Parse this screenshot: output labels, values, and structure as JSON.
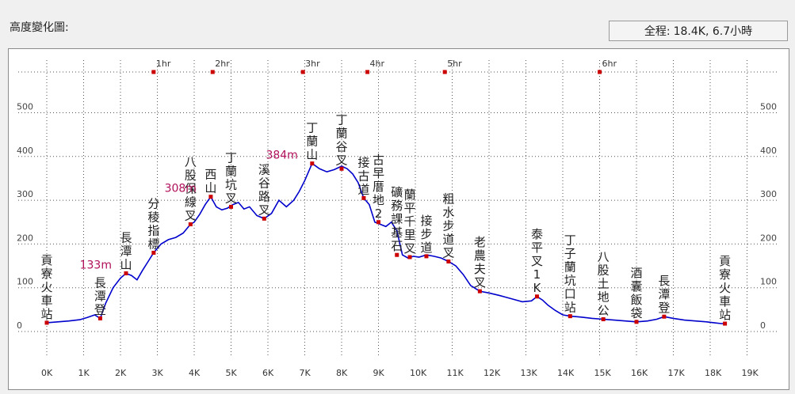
{
  "header": {
    "title": "高度變化圖:",
    "summary_label": "全程:",
    "summary_value": "18.4K, 6.7小時"
  },
  "chart_data": {
    "type": "line",
    "title": "",
    "xlabel": "",
    "ylabel": "",
    "xlim": [
      0,
      19
    ],
    "ylim": [
      0,
      550
    ],
    "x_tick_labels": [
      "0K",
      "1K",
      "2K",
      "3K",
      "4K",
      "5K",
      "6K",
      "7K",
      "8K",
      "9K",
      "10K",
      "11K",
      "12K",
      "13K",
      "14K",
      "15K",
      "16K",
      "17K",
      "18K",
      "19K"
    ],
    "y_ticks": [
      0,
      100,
      200,
      300,
      400,
      500
    ],
    "y_tick_labels": [
      "0",
      "100",
      "200",
      "300",
      "400",
      "500"
    ],
    "time_ticks": [
      {
        "label": "1hr",
        "x": 2.9
      },
      {
        "label": "2hr",
        "x": 4.5
      },
      {
        "label": "3hr",
        "x": 6.95
      },
      {
        "label": "4hr",
        "x": 8.7
      },
      {
        "label": "5hr",
        "x": 10.8
      },
      {
        "label": "6hr",
        "x": 15.0
      }
    ],
    "grid": true,
    "series": [
      {
        "color": "#0000cc",
        "x": [
          0,
          0.3,
          0.6,
          0.9,
          1.1,
          1.3,
          1.45,
          1.6,
          1.8,
          2.0,
          2.15,
          2.3,
          2.45,
          2.6,
          2.75,
          2.9,
          3.1,
          3.3,
          3.5,
          3.7,
          3.9,
          4.0,
          4.15,
          4.3,
          4.45,
          4.6,
          4.75,
          4.9,
          5.05,
          5.2,
          5.35,
          5.5,
          5.7,
          5.9,
          6.1,
          6.3,
          6.5,
          6.7,
          6.85,
          7.0,
          7.2,
          7.4,
          7.6,
          7.8,
          8.0,
          8.15,
          8.3,
          8.45,
          8.6,
          8.75,
          8.9,
          9.05,
          9.2,
          9.35,
          9.5,
          9.65,
          9.8,
          9.95,
          10.1,
          10.3,
          10.5,
          10.7,
          10.9,
          11.1,
          11.3,
          11.5,
          11.75,
          12.0,
          12.3,
          12.6,
          12.9,
          13.15,
          13.3,
          13.45,
          13.6,
          13.8,
          14.0,
          14.2,
          14.5,
          14.8,
          15.1,
          15.4,
          15.7,
          16.0,
          16.3,
          16.55,
          16.75,
          17.0,
          17.3,
          17.6,
          17.9,
          18.1,
          18.3,
          18.4
        ],
        "y": [
          20,
          22,
          24,
          27,
          32,
          38,
          30,
          65,
          100,
          122,
          133,
          128,
          118,
          140,
          160,
          180,
          200,
          210,
          215,
          225,
          245,
          250,
          268,
          290,
          308,
          285,
          278,
          282,
          290,
          295,
          280,
          285,
          265,
          258,
          270,
          300,
          285,
          300,
          320,
          345,
          384,
          372,
          365,
          370,
          378,
          372,
          360,
          340,
          305,
          290,
          250,
          245,
          240,
          250,
          230,
          175,
          168,
          172,
          170,
          175,
          172,
          168,
          160,
          150,
          130,
          105,
          92,
          88,
          82,
          75,
          68,
          70,
          80,
          72,
          60,
          48,
          38,
          35,
          33,
          30,
          28,
          26,
          24,
          22,
          24,
          28,
          34,
          30,
          26,
          24,
          22,
          20,
          18,
          18
        ]
      }
    ],
    "waypoints": [
      {
        "label": "貢寮火車站",
        "x": 0.0,
        "y": 20
      },
      {
        "label": "長潭登",
        "x": 1.45,
        "y": 30
      },
      {
        "label": "長潭山",
        "x": 2.15,
        "y": 133
      },
      {
        "label": "分稜指標",
        "x": 2.9,
        "y": 180
      },
      {
        "label": "八股保線叉",
        "x": 3.9,
        "y": 245
      },
      {
        "label": "西山",
        "x": 4.45,
        "y": 308
      },
      {
        "label": "丁蘭坑叉",
        "x": 5.0,
        "y": 285
      },
      {
        "label": "溪谷路叉",
        "x": 5.9,
        "y": 258
      },
      {
        "label": "丁蘭山",
        "x": 7.2,
        "y": 384
      },
      {
        "label": "丁蘭谷叉",
        "x": 8.0,
        "y": 372
      },
      {
        "label": "接古道",
        "x": 8.6,
        "y": 305
      },
      {
        "label": "古早厝地2",
        "x": 9.0,
        "y": 250
      },
      {
        "label": "礦務課基石",
        "x": 9.5,
        "y": 175
      },
      {
        "label": "蘭平千里叉",
        "x": 9.85,
        "y": 170
      },
      {
        "label": "接步道",
        "x": 10.3,
        "y": 172
      },
      {
        "label": "粗水步道叉",
        "x": 10.9,
        "y": 160
      },
      {
        "label": "老農夫叉",
        "x": 11.75,
        "y": 92
      },
      {
        "label": "泰平叉1K",
        "x": 13.3,
        "y": 80
      },
      {
        "label": "丁子蘭坑口站",
        "x": 14.2,
        "y": 35
      },
      {
        "label": "八股土地公",
        "x": 15.1,
        "y": 28
      },
      {
        "label": "酒囊飯袋",
        "x": 16.0,
        "y": 22
      },
      {
        "label": "長潭登",
        "x": 16.75,
        "y": 34
      },
      {
        "label": "貢寮火車站",
        "x": 18.4,
        "y": 18
      }
    ],
    "elevation_labels": [
      {
        "label": "133m",
        "x": 2.15,
        "y": 133
      },
      {
        "label": "308m",
        "x": 4.45,
        "y": 308
      },
      {
        "label": "384m",
        "x": 7.2,
        "y": 384
      }
    ]
  }
}
